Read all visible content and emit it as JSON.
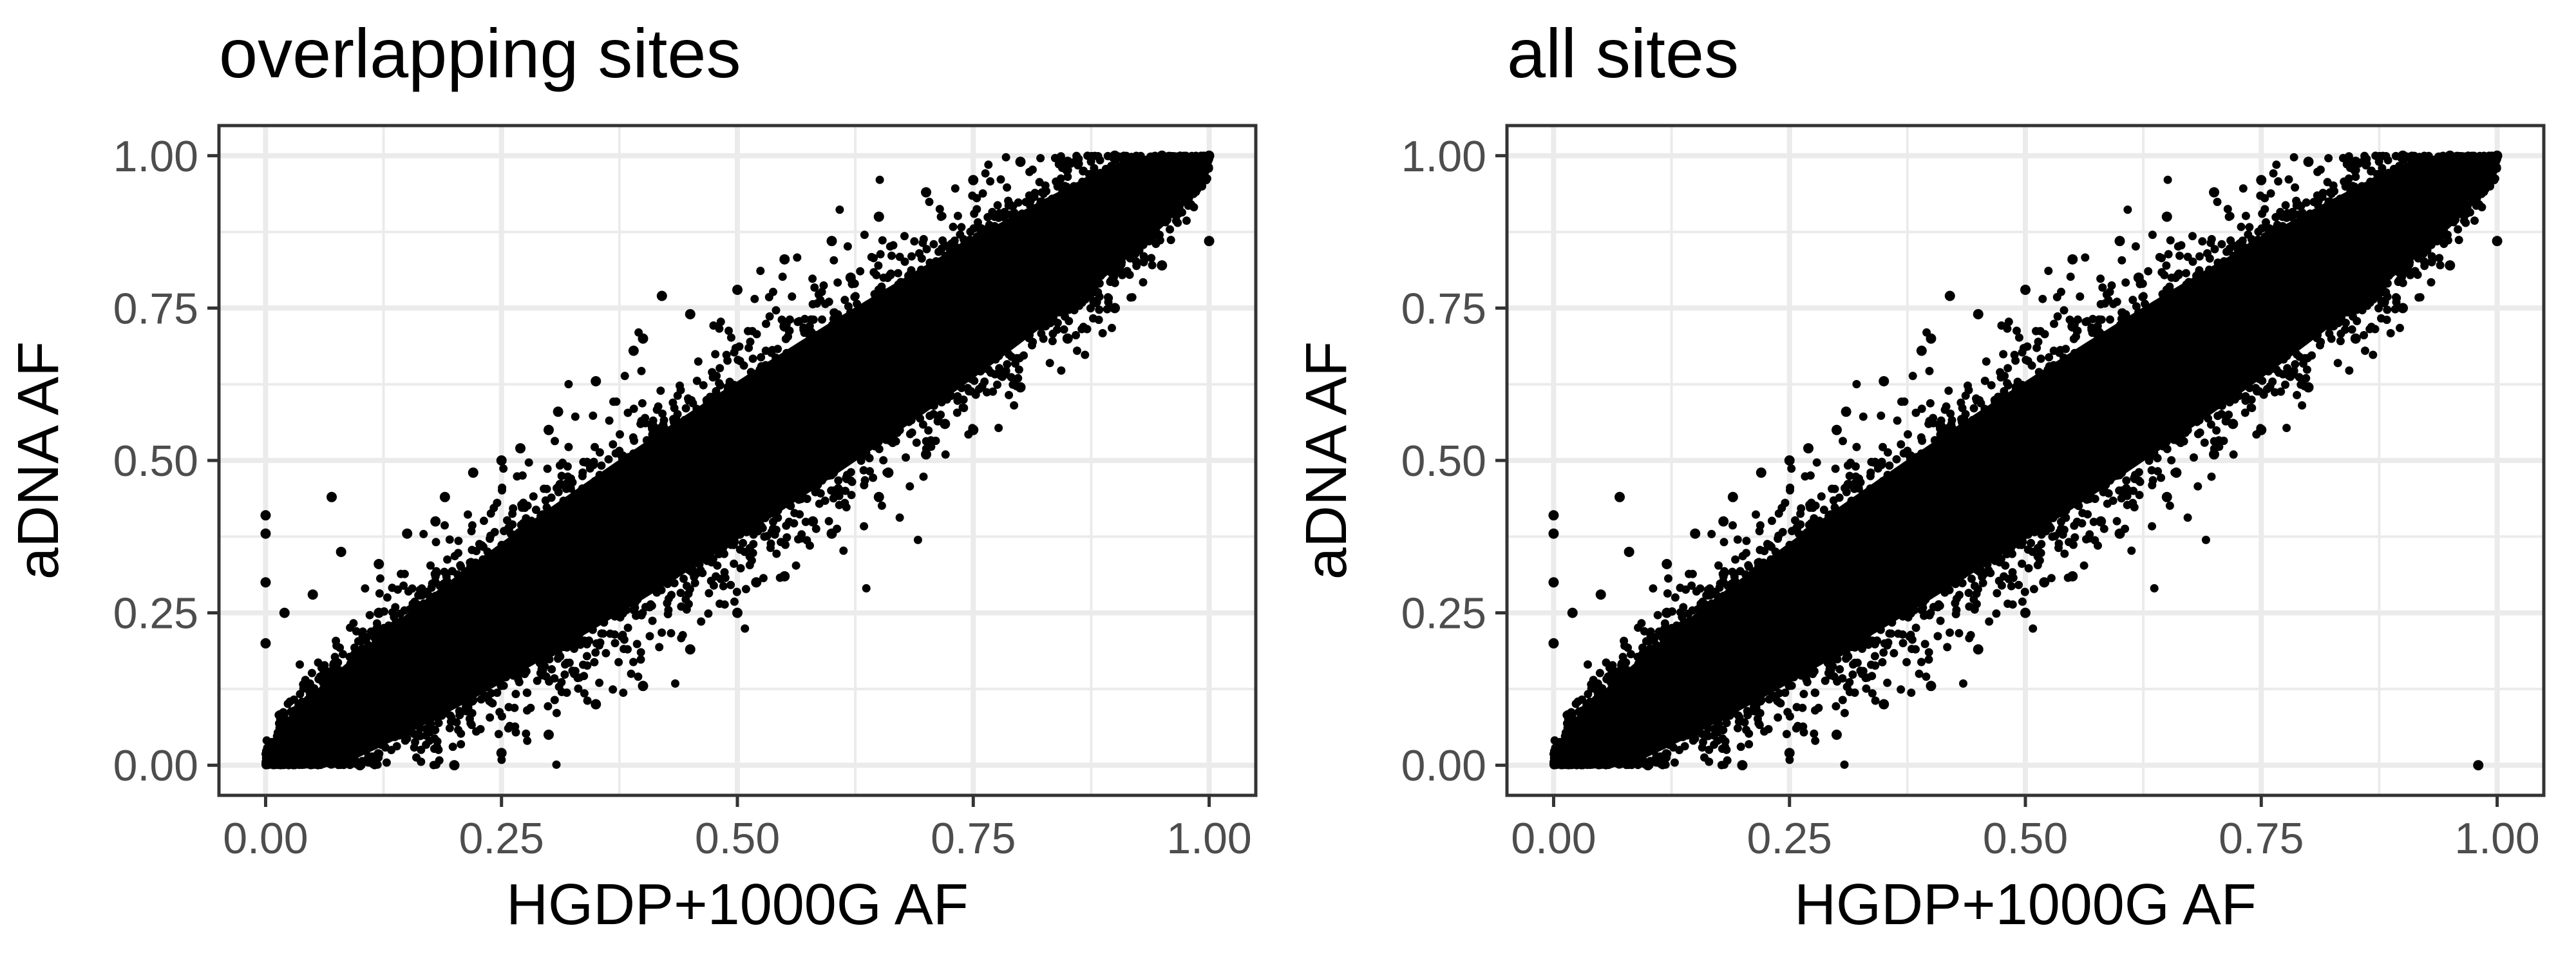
{
  "chart_data": [
    {
      "type": "scatter",
      "title": "overlapping sites",
      "xlabel": "HGDP+1000G AF",
      "ylabel": "aDNA AF",
      "xlim": [
        0,
        1
      ],
      "ylim": [
        0,
        1
      ],
      "xticks": [
        "0.00",
        "0.25",
        "0.50",
        "0.75",
        "1.00"
      ],
      "yticks": [
        "0.00",
        "0.25",
        "0.50",
        "0.75",
        "1.00"
      ],
      "grid": true,
      "point_color": "#000000",
      "trend": "dense cloud along y = x, widest near the middle",
      "points": [
        [
          0.0,
          0.41
        ],
        [
          0.0,
          0.38
        ],
        [
          0.0,
          0.3
        ],
        [
          0.0,
          0.2
        ],
        [
          0.07,
          0.44
        ],
        [
          0.02,
          0.25
        ],
        [
          0.05,
          0.28
        ],
        [
          0.08,
          0.35
        ],
        [
          0.12,
          0.33
        ],
        [
          0.15,
          0.38
        ],
        [
          0.19,
          0.44
        ],
        [
          0.22,
          0.48
        ],
        [
          0.27,
          0.52
        ],
        [
          0.31,
          0.58
        ],
        [
          0.35,
          0.63
        ],
        [
          0.39,
          0.68
        ],
        [
          0.42,
          0.77
        ],
        [
          0.45,
          0.74
        ],
        [
          0.5,
          0.78
        ],
        [
          0.55,
          0.83
        ],
        [
          0.6,
          0.86
        ],
        [
          0.65,
          0.9
        ],
        [
          0.7,
          0.94
        ],
        [
          0.75,
          0.96
        ],
        [
          0.8,
          0.99
        ],
        [
          0.85,
          0.99
        ],
        [
          0.9,
          1.0
        ],
        [
          0.95,
          1.0
        ],
        [
          1.0,
          1.0
        ],
        [
          0.1,
          0.0
        ],
        [
          0.2,
          0.0
        ],
        [
          0.25,
          0.02
        ],
        [
          0.3,
          0.05
        ],
        [
          0.35,
          0.1
        ],
        [
          0.4,
          0.13
        ],
        [
          0.45,
          0.19
        ],
        [
          0.5,
          0.25
        ],
        [
          0.55,
          0.31
        ],
        [
          0.6,
          0.38
        ],
        [
          0.65,
          0.44
        ],
        [
          0.7,
          0.51
        ],
        [
          0.75,
          0.55
        ],
        [
          0.8,
          0.62
        ],
        [
          0.85,
          0.7
        ],
        [
          0.9,
          0.75
        ],
        [
          0.95,
          0.82
        ],
        [
          1.0,
          0.86
        ],
        [
          0.52,
          0.3
        ],
        [
          0.58,
          0.4
        ],
        [
          0.66,
          0.48
        ],
        [
          0.72,
          0.56
        ],
        [
          0.78,
          0.64
        ],
        [
          0.88,
          0.76
        ],
        [
          0.3,
          0.55
        ],
        [
          0.25,
          0.5
        ],
        [
          0.4,
          0.7
        ],
        [
          0.18,
          0.4
        ],
        [
          0.12,
          0.25
        ],
        [
          0.55,
          0.72
        ],
        [
          0.62,
          0.8
        ]
      ]
    },
    {
      "type": "scatter",
      "title": "all sites",
      "xlabel": "HGDP+1000G AF",
      "ylabel": "aDNA AF",
      "xlim": [
        0,
        1
      ],
      "ylim": [
        0,
        1
      ],
      "xticks": [
        "0.00",
        "0.25",
        "0.50",
        "0.75",
        "1.00"
      ],
      "yticks": [
        "0.00",
        "0.25",
        "0.50",
        "0.75",
        "1.00"
      ],
      "grid": true,
      "point_color": "#000000",
      "trend": "dense cloud along y = x, widest near the middle",
      "points": [
        [
          0.0,
          0.41
        ],
        [
          0.0,
          0.38
        ],
        [
          0.0,
          0.3
        ],
        [
          0.0,
          0.2
        ],
        [
          0.07,
          0.44
        ],
        [
          0.02,
          0.25
        ],
        [
          0.05,
          0.28
        ],
        [
          0.08,
          0.35
        ],
        [
          0.12,
          0.33
        ],
        [
          0.15,
          0.38
        ],
        [
          0.19,
          0.44
        ],
        [
          0.22,
          0.48
        ],
        [
          0.27,
          0.52
        ],
        [
          0.31,
          0.58
        ],
        [
          0.35,
          0.63
        ],
        [
          0.39,
          0.68
        ],
        [
          0.42,
          0.77
        ],
        [
          0.45,
          0.74
        ],
        [
          0.5,
          0.78
        ],
        [
          0.55,
          0.83
        ],
        [
          0.6,
          0.86
        ],
        [
          0.65,
          0.9
        ],
        [
          0.7,
          0.94
        ],
        [
          0.75,
          0.96
        ],
        [
          0.8,
          0.99
        ],
        [
          0.85,
          0.99
        ],
        [
          0.9,
          1.0
        ],
        [
          0.95,
          1.0
        ],
        [
          1.0,
          1.0
        ],
        [
          0.1,
          0.0
        ],
        [
          0.2,
          0.0
        ],
        [
          0.25,
          0.02
        ],
        [
          0.3,
          0.05
        ],
        [
          0.35,
          0.1
        ],
        [
          0.4,
          0.13
        ],
        [
          0.45,
          0.19
        ],
        [
          0.5,
          0.25
        ],
        [
          0.55,
          0.31
        ],
        [
          0.6,
          0.38
        ],
        [
          0.65,
          0.44
        ],
        [
          0.7,
          0.51
        ],
        [
          0.75,
          0.55
        ],
        [
          0.8,
          0.62
        ],
        [
          0.85,
          0.7
        ],
        [
          0.9,
          0.75
        ],
        [
          0.95,
          0.82
        ],
        [
          1.0,
          0.86
        ],
        [
          0.52,
          0.3
        ],
        [
          0.58,
          0.4
        ],
        [
          0.66,
          0.48
        ],
        [
          0.72,
          0.56
        ],
        [
          0.78,
          0.64
        ],
        [
          0.88,
          0.76
        ],
        [
          0.3,
          0.55
        ],
        [
          0.25,
          0.5
        ],
        [
          0.4,
          0.7
        ],
        [
          0.18,
          0.4
        ],
        [
          0.12,
          0.25
        ],
        [
          0.55,
          0.72
        ],
        [
          0.62,
          0.8
        ],
        [
          0.98,
          0.0
        ]
      ]
    }
  ]
}
